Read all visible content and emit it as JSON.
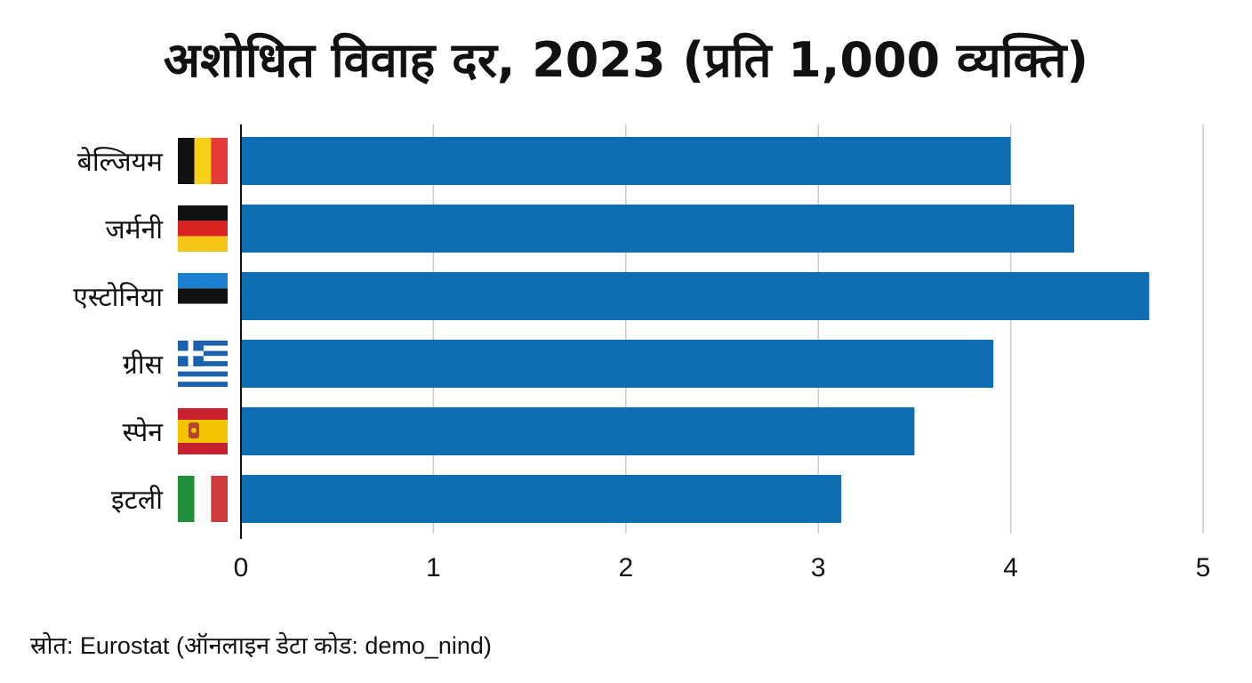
{
  "chart_data": {
    "type": "bar",
    "orientation": "horizontal",
    "title": "अशोधित विवाह दर, 2023 (प्रति 1,000 व्यक्ति)",
    "categories": [
      "बेल्जियम",
      "जर्मनी",
      "एस्टोनिया",
      "ग्रीस",
      "स्पेन",
      "इटली"
    ],
    "flags": [
      "belgium-flag-icon",
      "germany-flag-icon",
      "estonia-flag-icon",
      "greece-flag-icon",
      "spain-flag-icon",
      "italy-flag-icon"
    ],
    "values": [
      4.0,
      4.33,
      4.72,
      3.91,
      3.5,
      3.12
    ],
    "xlim": [
      0,
      5
    ],
    "xticks": [
      "0",
      "1",
      "2",
      "3",
      "4",
      "5"
    ],
    "xlabel": "",
    "ylabel": "",
    "grid": "vertical",
    "bar_color": "#0f6eb2",
    "grid_color": "#cccccc"
  },
  "source": "स्रोत: Eurostat (ऑनलाइन डेटा कोड: demo_nind)"
}
